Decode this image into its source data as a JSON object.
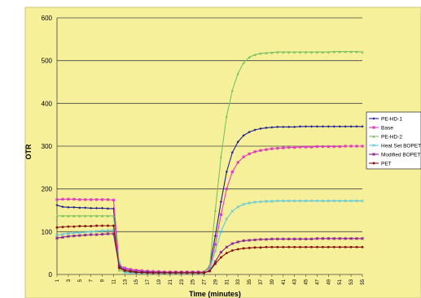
{
  "chart_data": {
    "type": "line",
    "title": "",
    "xlabel": "Time (minutes)",
    "ylabel": "OTR",
    "ylim": [
      0,
      600
    ],
    "yticks": [
      0,
      100,
      200,
      300,
      400,
      500,
      600
    ],
    "xticks": [
      1,
      3,
      5,
      7,
      9,
      11,
      13,
      15,
      17,
      19,
      21,
      23,
      25,
      27,
      29,
      31,
      33,
      35,
      37,
      39,
      41,
      43,
      45,
      47,
      49,
      51,
      53,
      55
    ],
    "grid": true,
    "legend_position": "right",
    "background": "#f6f09a",
    "series": [
      {
        "name": "PE-HD-1",
        "color": "#1f1f8f",
        "marker": "diamond",
        "x": [
          1,
          2,
          3,
          4,
          5,
          6,
          7,
          8,
          9,
          10,
          11,
          12,
          13,
          14,
          15,
          16,
          17,
          18,
          19,
          20,
          21,
          22,
          23,
          24,
          25,
          26,
          27,
          28,
          29,
          30,
          31,
          32,
          33,
          34,
          35,
          36,
          37,
          38,
          39,
          40,
          41,
          42,
          43,
          44,
          45,
          46,
          47,
          48,
          49,
          50,
          51,
          52,
          53,
          54,
          55
        ],
        "y": [
          162,
          158,
          157,
          157,
          156,
          156,
          155,
          155,
          155,
          154,
          154,
          20,
          14,
          11,
          9,
          8,
          7,
          6,
          6,
          5,
          5,
          5,
          5,
          5,
          5,
          5,
          5,
          20,
          90,
          170,
          240,
          285,
          310,
          325,
          333,
          338,
          341,
          343,
          344,
          345,
          345,
          345,
          345,
          346,
          346,
          346,
          346,
          346,
          346,
          346,
          346,
          346,
          346,
          346,
          346
        ]
      },
      {
        "name": "Base",
        "color": "#e040c0",
        "marker": "square",
        "x": [
          1,
          2,
          3,
          4,
          5,
          6,
          7,
          8,
          9,
          10,
          11,
          12,
          13,
          14,
          15,
          16,
          17,
          18,
          19,
          20,
          21,
          22,
          23,
          24,
          25,
          26,
          27,
          28,
          29,
          30,
          31,
          32,
          33,
          34,
          35,
          36,
          37,
          38,
          39,
          40,
          41,
          42,
          43,
          44,
          45,
          46,
          47,
          48,
          49,
          50,
          51,
          52,
          53,
          54,
          55
        ],
        "y": [
          175,
          176,
          176,
          176,
          175,
          175,
          175,
          175,
          175,
          175,
          174,
          22,
          15,
          12,
          10,
          9,
          8,
          7,
          7,
          6,
          6,
          6,
          6,
          6,
          6,
          6,
          6,
          15,
          70,
          140,
          200,
          240,
          262,
          275,
          282,
          287,
          290,
          292,
          294,
          295,
          296,
          297,
          297,
          298,
          298,
          298,
          299,
          299,
          299,
          299,
          299,
          300,
          300,
          300,
          300
        ]
      },
      {
        "name": "PE-HD-2",
        "color": "#7cc060",
        "marker": "triangle",
        "x": [
          1,
          2,
          3,
          4,
          5,
          6,
          7,
          8,
          9,
          10,
          11,
          12,
          13,
          14,
          15,
          16,
          17,
          18,
          19,
          20,
          21,
          22,
          23,
          24,
          25,
          26,
          27,
          28,
          29,
          30,
          31,
          32,
          33,
          34,
          35,
          36,
          37,
          38,
          39,
          40,
          41,
          42,
          43,
          44,
          45,
          46,
          47,
          48,
          49,
          50,
          51,
          52,
          53,
          54,
          55
        ],
        "y": [
          137,
          137,
          137,
          137,
          137,
          137,
          137,
          137,
          137,
          137,
          137,
          10,
          6,
          5,
          4,
          4,
          4,
          4,
          4,
          4,
          4,
          4,
          4,
          4,
          4,
          4,
          4,
          20,
          150,
          275,
          370,
          430,
          470,
          495,
          508,
          514,
          517,
          518,
          519,
          520,
          520,
          520,
          520,
          520,
          520,
          520,
          520,
          520,
          520,
          521,
          521,
          521,
          521,
          521,
          520
        ]
      },
      {
        "name": "Heat Set BOPET",
        "color": "#60c8d8",
        "marker": "x",
        "x": [
          1,
          2,
          3,
          4,
          5,
          6,
          7,
          8,
          9,
          10,
          11,
          12,
          13,
          14,
          15,
          16,
          17,
          18,
          19,
          20,
          21,
          22,
          23,
          24,
          25,
          26,
          27,
          28,
          29,
          30,
          31,
          32,
          33,
          34,
          35,
          36,
          37,
          38,
          39,
          40,
          41,
          42,
          43,
          44,
          45,
          46,
          47,
          48,
          49,
          50,
          51,
          52,
          53,
          54,
          55
        ],
        "y": [
          92,
          94,
          96,
          97,
          98,
          99,
          100,
          101,
          102,
          103,
          103,
          30,
          5,
          3,
          3,
          3,
          3,
          3,
          3,
          3,
          3,
          3,
          3,
          3,
          3,
          3,
          3,
          10,
          55,
          100,
          130,
          148,
          158,
          164,
          167,
          169,
          170,
          171,
          171,
          172,
          172,
          172,
          172,
          172,
          172,
          172,
          172,
          172,
          172,
          172,
          172,
          172,
          172,
          172,
          172
        ]
      },
      {
        "name": "Modified BOPET",
        "color": "#8a2090",
        "marker": "star",
        "x": [
          1,
          2,
          3,
          4,
          5,
          6,
          7,
          8,
          9,
          10,
          11,
          12,
          13,
          14,
          15,
          16,
          17,
          18,
          19,
          20,
          21,
          22,
          23,
          24,
          25,
          26,
          27,
          28,
          29,
          30,
          31,
          32,
          33,
          34,
          35,
          36,
          37,
          38,
          39,
          40,
          41,
          42,
          43,
          44,
          45,
          46,
          47,
          48,
          49,
          50,
          51,
          52,
          53,
          54,
          55
        ],
        "y": [
          85,
          87,
          89,
          90,
          91,
          92,
          93,
          93,
          94,
          95,
          95,
          18,
          10,
          8,
          6,
          5,
          5,
          4,
          4,
          4,
          4,
          4,
          4,
          4,
          4,
          4,
          4,
          8,
          30,
          52,
          64,
          72,
          76,
          79,
          80,
          81,
          82,
          82,
          83,
          83,
          83,
          83,
          83,
          83,
          83,
          83,
          84,
          84,
          84,
          84,
          84,
          84,
          84,
          84,
          84
        ]
      },
      {
        "name": "PET",
        "color": "#8a1010",
        "marker": "circle",
        "x": [
          1,
          2,
          3,
          4,
          5,
          6,
          7,
          8,
          9,
          10,
          11,
          12,
          13,
          14,
          15,
          16,
          17,
          18,
          19,
          20,
          21,
          22,
          23,
          24,
          25,
          26,
          27,
          28,
          29,
          30,
          31,
          32,
          33,
          34,
          35,
          36,
          37,
          38,
          39,
          40,
          41,
          42,
          43,
          44,
          45,
          46,
          47,
          48,
          49,
          50,
          51,
          52,
          53,
          54,
          55
        ],
        "y": [
          110,
          111,
          112,
          112,
          113,
          113,
          113,
          114,
          114,
          114,
          114,
          15,
          9,
          7,
          5,
          5,
          4,
          4,
          4,
          4,
          4,
          4,
          4,
          4,
          4,
          4,
          4,
          8,
          25,
          40,
          50,
          56,
          59,
          61,
          62,
          63,
          63,
          64,
          64,
          64,
          64,
          64,
          64,
          64,
          64,
          64,
          64,
          64,
          64,
          64,
          64,
          64,
          64,
          64,
          64
        ]
      }
    ]
  }
}
